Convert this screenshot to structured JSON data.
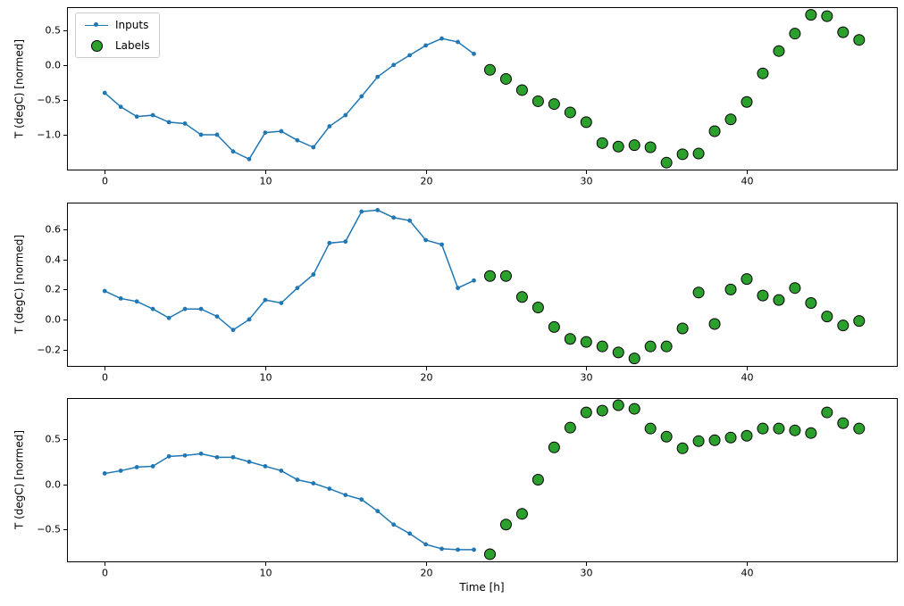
{
  "figure": {
    "background": "#ffffff",
    "xlabel": "Time [h]",
    "ylabel": "T (degC) [normed]"
  },
  "chart_data": [
    {
      "type": "line",
      "title": "",
      "xlabel": "",
      "ylabel": "T (degC) [normed]",
      "xlim": [
        -2.35,
        49.35
      ],
      "ylim": [
        -1.5,
        0.83
      ],
      "xticks": [
        0,
        10,
        20,
        30,
        40
      ],
      "yticks": [
        0.5,
        0.0,
        -0.5,
        -1.0
      ],
      "grid": false,
      "legend": {
        "visible": true,
        "position": "upper left",
        "entries": [
          "Inputs",
          "Labels"
        ]
      },
      "series": [
        {
          "name": "Inputs",
          "style": "line+marker",
          "color": "#1f77b4",
          "marker_radius": 2.4,
          "x": [
            0,
            1,
            2,
            3,
            4,
            5,
            6,
            7,
            8,
            9,
            10,
            11,
            12,
            13,
            14,
            15,
            16,
            17,
            18,
            19,
            20,
            21,
            22,
            23
          ],
          "y": [
            -0.4,
            -0.6,
            -0.74,
            -0.72,
            -0.82,
            -0.84,
            -1.0,
            -1.0,
            -1.24,
            -1.35,
            -0.97,
            -0.95,
            -1.08,
            -1.18,
            -0.88,
            -0.72,
            -0.45,
            -0.17,
            0.0,
            0.14,
            0.28,
            0.38,
            0.33,
            0.16
          ]
        },
        {
          "name": "Labels",
          "style": "scatter",
          "color": "#2ca02c",
          "edge_color": "#000000",
          "marker_radius": 6,
          "x": [
            24,
            25,
            26,
            27,
            28,
            29,
            30,
            31,
            32,
            33,
            34,
            35,
            36,
            37,
            38,
            39,
            40,
            41,
            42,
            43,
            44,
            45,
            46,
            47
          ],
          "y": [
            -0.07,
            -0.2,
            -0.36,
            -0.52,
            -0.56,
            -0.68,
            -0.82,
            -1.12,
            -1.17,
            -1.15,
            -1.18,
            -1.4,
            -1.28,
            -1.27,
            -0.95,
            -0.78,
            -0.53,
            -0.12,
            0.2,
            0.45,
            0.72,
            0.7,
            0.47,
            0.36
          ]
        }
      ]
    },
    {
      "type": "line",
      "title": "",
      "xlabel": "",
      "ylabel": "T (degC) [normed]",
      "xlim": [
        -2.35,
        49.35
      ],
      "ylim": [
        -0.31,
        0.78
      ],
      "xticks": [
        0,
        10,
        20,
        30,
        40
      ],
      "yticks": [
        0.6,
        0.4,
        0.2,
        0.0,
        -0.2
      ],
      "grid": false,
      "legend": {
        "visible": false
      },
      "series": [
        {
          "name": "Inputs",
          "style": "line+marker",
          "color": "#1f77b4",
          "marker_radius": 2.4,
          "x": [
            0,
            1,
            2,
            3,
            4,
            5,
            6,
            7,
            8,
            9,
            10,
            11,
            12,
            13,
            14,
            15,
            16,
            17,
            18,
            19,
            20,
            21,
            22,
            23
          ],
          "y": [
            0.19,
            0.14,
            0.12,
            0.07,
            0.01,
            0.07,
            0.07,
            0.02,
            -0.07,
            0.0,
            0.13,
            0.11,
            0.21,
            0.3,
            0.51,
            0.52,
            0.72,
            0.73,
            0.68,
            0.66,
            0.53,
            0.5,
            0.21,
            0.26
          ]
        },
        {
          "name": "Labels",
          "style": "scatter",
          "color": "#2ca02c",
          "edge_color": "#000000",
          "marker_radius": 6,
          "x": [
            24,
            25,
            26,
            27,
            28,
            29,
            30,
            31,
            32,
            33,
            34,
            35,
            36,
            37,
            38,
            39,
            40,
            41,
            42,
            43,
            44,
            45,
            46,
            47
          ],
          "y": [
            0.29,
            0.29,
            0.15,
            0.08,
            -0.05,
            -0.13,
            -0.15,
            -0.18,
            -0.22,
            -0.26,
            -0.18,
            -0.18,
            -0.06,
            0.18,
            -0.03,
            0.2,
            0.27,
            0.16,
            0.13,
            0.21,
            0.11,
            0.02,
            -0.04,
            -0.01
          ]
        }
      ]
    },
    {
      "type": "line",
      "title": "",
      "xlabel": "Time [h]",
      "ylabel": "T (degC) [normed]",
      "xlim": [
        -2.35,
        49.35
      ],
      "ylim": [
        -0.86,
        0.96
      ],
      "xticks": [
        0,
        10,
        20,
        30,
        40
      ],
      "yticks": [
        0.5,
        0.0,
        -0.5
      ],
      "grid": false,
      "legend": {
        "visible": false
      },
      "series": [
        {
          "name": "Inputs",
          "style": "line+marker",
          "color": "#1f77b4",
          "marker_radius": 2.4,
          "x": [
            0,
            1,
            2,
            3,
            4,
            5,
            6,
            7,
            8,
            9,
            10,
            11,
            12,
            13,
            14,
            15,
            16,
            17,
            18,
            19,
            20,
            21,
            22,
            23
          ],
          "y": [
            0.12,
            0.15,
            0.19,
            0.2,
            0.31,
            0.32,
            0.34,
            0.3,
            0.3,
            0.25,
            0.2,
            0.15,
            0.05,
            0.01,
            -0.05,
            -0.12,
            -0.17,
            -0.3,
            -0.45,
            -0.55,
            -0.67,
            -0.72,
            -0.73,
            -0.73
          ]
        },
        {
          "name": "Labels",
          "style": "scatter",
          "color": "#2ca02c",
          "edge_color": "#000000",
          "marker_radius": 6,
          "x": [
            24,
            25,
            26,
            27,
            28,
            29,
            30,
            31,
            32,
            33,
            34,
            35,
            36,
            37,
            38,
            39,
            40,
            41,
            42,
            43,
            44,
            45,
            46,
            47
          ],
          "y": [
            -0.78,
            -0.45,
            -0.33,
            0.05,
            0.41,
            0.63,
            0.8,
            0.82,
            0.88,
            0.84,
            0.62,
            0.53,
            0.4,
            0.48,
            0.49,
            0.52,
            0.54,
            0.62,
            0.62,
            0.6,
            0.57,
            0.8,
            0.68,
            0.62
          ]
        }
      ]
    }
  ]
}
